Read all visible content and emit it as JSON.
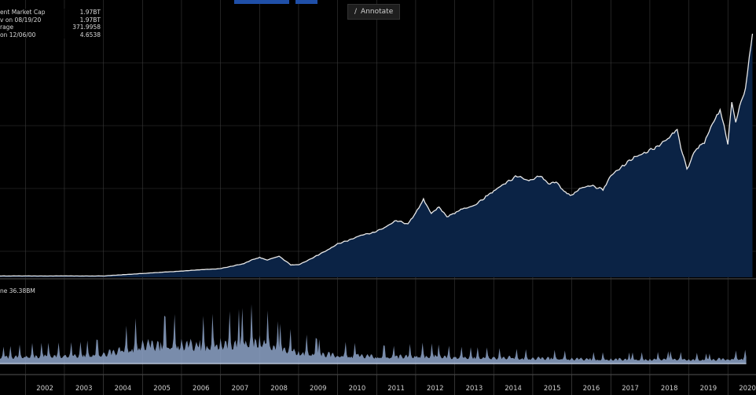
{
  "toolbar": {
    "annotate_label": "Annotate"
  },
  "legend": [
    {
      "label": "ent Market Cap",
      "value": "1.97BT"
    },
    {
      "label": "v on 08/19/20",
      "value": "1.97BT"
    },
    {
      "label": "rage",
      "value": "371.9958"
    },
    {
      "label": "on 12/06/00",
      "value": "4.6538"
    }
  ],
  "volume_legend": "ne 36.38BM",
  "colors": {
    "price_line": "#e8e8e8",
    "price_fill": "#0b2345",
    "volume_fill": "#8ea4c9",
    "grid": "#3a3a3a"
  },
  "chart_data": [
    {
      "type": "area",
      "series": [
        {
          "x": [
            2001.0,
            2001.5,
            2002.0,
            2002.5,
            2003.0,
            2003.5,
            2004.0,
            2004.5,
            2005.0,
            2005.5,
            2006.0,
            2006.5,
            2007.0,
            2007.3,
            2007.6,
            2007.8,
            2008.0,
            2008.2,
            2008.5,
            2008.8,
            2009.0,
            2009.2,
            2009.5,
            2009.8,
            2010.0,
            2010.3,
            2010.6,
            2010.9,
            2011.2,
            2011.5,
            2011.8,
            2012.0,
            2012.2,
            2012.4,
            2012.6,
            2012.8,
            2013.0,
            2013.2,
            2013.5,
            2013.8,
            2014.0,
            2014.3,
            2014.6,
            2014.9,
            2015.2,
            2015.4,
            2015.6,
            2015.8,
            2016.0,
            2016.2,
            2016.5,
            2016.8,
            2017.0,
            2017.3,
            2017.6,
            2017.9,
            2018.2,
            2018.5,
            2018.7,
            2018.8,
            2018.95,
            2019.05,
            2019.2,
            2019.4,
            2019.6,
            2019.8,
            2019.9,
            2020.0,
            2020.1,
            2020.2,
            2020.3,
            2020.45,
            2020.55,
            2020.63
          ],
          "y": [
            0.01,
            0.01,
            0.01,
            0.01,
            0.01,
            0.01,
            0.01,
            0.02,
            0.03,
            0.04,
            0.05,
            0.06,
            0.07,
            0.09,
            0.11,
            0.14,
            0.16,
            0.14,
            0.17,
            0.1,
            0.1,
            0.13,
            0.18,
            0.23,
            0.27,
            0.3,
            0.34,
            0.36,
            0.4,
            0.46,
            0.43,
            0.52,
            0.63,
            0.52,
            0.57,
            0.49,
            0.52,
            0.55,
            0.58,
            0.65,
            0.7,
            0.76,
            0.82,
            0.78,
            0.82,
            0.75,
            0.77,
            0.69,
            0.66,
            0.72,
            0.74,
            0.71,
            0.82,
            0.9,
            0.97,
            1.01,
            1.06,
            1.13,
            1.19,
            1.05,
            0.87,
            0.95,
            1.04,
            1.09,
            1.23,
            1.35,
            1.23,
            1.07,
            1.43,
            1.24,
            1.39,
            1.52,
            1.79,
            1.97
          ]
        }
      ]
    },
    {
      "type": "area",
      "series": [
        {
          "x": [
            2001.0,
            2001.5,
            2002.0,
            2002.5,
            2003.0,
            2003.5,
            2004.0,
            2004.5,
            2005.0,
            2005.5,
            2006.0,
            2006.5,
            2007.0,
            2007.5,
            2008.0,
            2008.5,
            2009.0,
            2009.5,
            2010.0,
            2010.5,
            2011.0,
            2011.5,
            2012.0,
            2012.5,
            2013.0,
            2013.5,
            2014.0,
            2014.5,
            2015.0,
            2015.5,
            2016.0,
            2016.5,
            2017.0,
            2017.5,
            2018.0,
            2018.5,
            2019.0,
            2019.5,
            2020.0,
            2020.5
          ],
          "y": [
            0.1,
            0.14,
            0.16,
            0.17,
            0.17,
            0.18,
            0.2,
            0.28,
            0.4,
            0.38,
            0.4,
            0.37,
            0.42,
            0.44,
            0.5,
            0.33,
            0.25,
            0.2,
            0.18,
            0.16,
            0.15,
            0.14,
            0.17,
            0.16,
            0.14,
            0.13,
            0.13,
            0.12,
            0.11,
            0.11,
            0.1,
            0.09,
            0.09,
            0.09,
            0.09,
            0.1,
            0.09,
            0.08,
            0.1,
            0.11
          ]
        }
      ]
    }
  ],
  "x_axis": {
    "ticks": [
      "2002",
      "2003",
      "2004",
      "2005",
      "2006",
      "2007",
      "2008",
      "2009",
      "2010",
      "2011",
      "2012",
      "2013",
      "2014",
      "2015",
      "2016",
      "2017",
      "2018",
      "2019",
      "2020"
    ]
  }
}
